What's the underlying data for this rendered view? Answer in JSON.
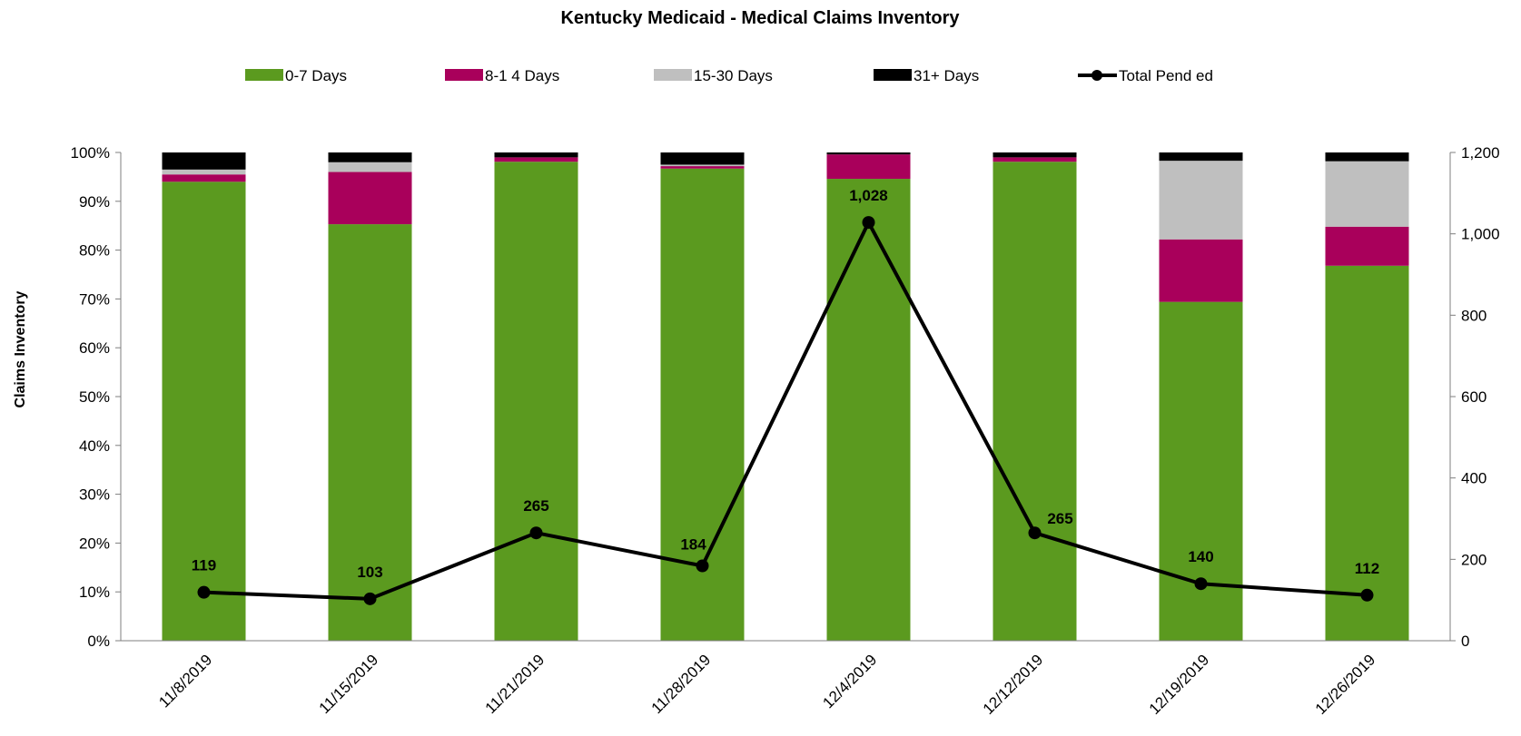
{
  "chart_data": {
    "type": "bar",
    "title": "Kentucky Medicaid - Medical Claims Inventory",
    "ylabel": "Claims Inventory",
    "xlabel": "",
    "categories": [
      "11/8/2019",
      "11/15/2019",
      "11/21/2019",
      "11/28/2019",
      "12/4/2019",
      "12/12/2019",
      "12/19/2019",
      "12/26/2019"
    ],
    "stacked": true,
    "series": [
      {
        "name": "0-7 Days",
        "color": "#5b9a1f",
        "values": [
          94,
          85.3,
          98.1,
          96.7,
          94.6,
          98.1,
          69.4,
          76.8
        ]
      },
      {
        "name": "8-1 4 Days",
        "color": "#a9005b",
        "values": [
          1.5,
          10.7,
          0.9,
          0.5,
          5.0,
          0.9,
          12.8,
          8.0
        ]
      },
      {
        "name": "15-30 Days",
        "color": "#bfbfbf",
        "values": [
          1.0,
          2.0,
          0.0,
          0.3,
          0.0,
          0.0,
          16.1,
          13.4
        ]
      },
      {
        "name": "31+ Days",
        "color": "#000000",
        "values": [
          3.5,
          2.0,
          1.0,
          2.5,
          0.4,
          1.0,
          1.7,
          1.8
        ]
      }
    ],
    "line_series": {
      "name": "Total Pend ed",
      "color": "#000000",
      "axis": "right",
      "values": [
        119,
        103,
        265,
        184,
        1028,
        265,
        140,
        112
      ],
      "labels": [
        "119",
        "103",
        "265",
        "184",
        "1,028",
        "265",
        "140",
        "112"
      ]
    },
    "ylim": [
      0,
      100
    ],
    "y_ticks": [
      "0%",
      "10%",
      "20%",
      "30%",
      "40%",
      "50%",
      "60%",
      "70%",
      "80%",
      "90%",
      "100%"
    ],
    "y2lim": [
      0,
      1200
    ],
    "y2_ticks": [
      "0",
      "200",
      "400",
      "600",
      "800",
      "1,000",
      "1,200"
    ],
    "legend_position": "top"
  }
}
